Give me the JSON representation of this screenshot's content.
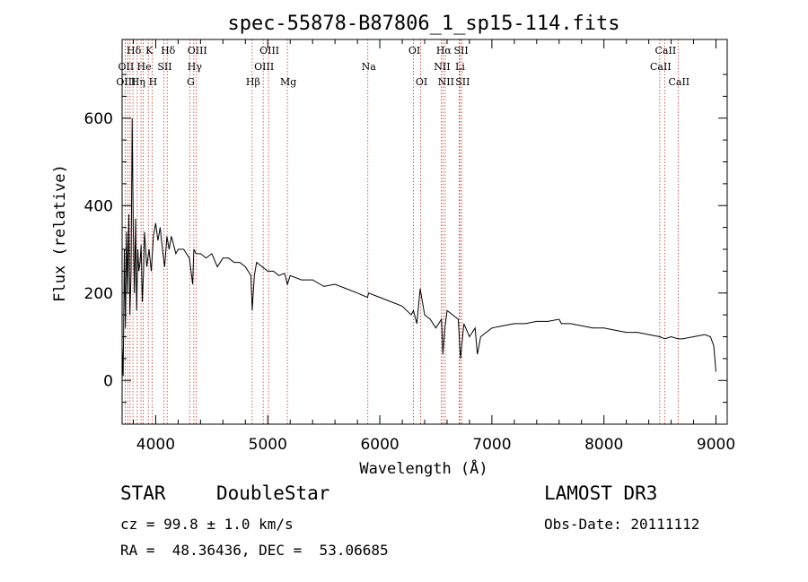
{
  "chart_data": {
    "type": "line",
    "title": "spec-55878-B87806_1_sp15-114.fits",
    "xlabel": "Wavelength (Å)",
    "ylabel": "Flux (relative)",
    "xlim": [
      3700,
      9100
    ],
    "ylim": [
      -100,
      780
    ],
    "x_ticks": [
      4000,
      5000,
      6000,
      7000,
      8000,
      9000
    ],
    "x_tick_labels": [
      "4000",
      "5000",
      "6000",
      "7000",
      "8000",
      "9000"
    ],
    "y_ticks": [
      0,
      200,
      400,
      600
    ],
    "y_tick_labels": [
      "0",
      "200",
      "400",
      "600"
    ],
    "series": [
      {
        "name": "flux",
        "x": [
          3700,
          3710,
          3720,
          3730,
          3740,
          3750,
          3760,
          3770,
          3780,
          3790,
          3800,
          3810,
          3820,
          3830,
          3840,
          3850,
          3860,
          3870,
          3880,
          3890,
          3900,
          3920,
          3940,
          3960,
          3980,
          4000,
          4020,
          4040,
          4060,
          4080,
          4100,
          4120,
          4140,
          4160,
          4180,
          4200,
          4250,
          4300,
          4330,
          4340,
          4360,
          4400,
          4450,
          4500,
          4550,
          4600,
          4650,
          4700,
          4750,
          4800,
          4850,
          4861,
          4880,
          4900,
          4950,
          5000,
          5050,
          5100,
          5150,
          5175,
          5200,
          5300,
          5400,
          5500,
          5600,
          5700,
          5800,
          5890,
          5900,
          6000,
          6100,
          6200,
          6280,
          6300,
          6330,
          6360,
          6400,
          6450,
          6500,
          6550,
          6563,
          6580,
          6600,
          6650,
          6700,
          6720,
          6750,
          6800,
          6850,
          6870,
          6900,
          6950,
          7000,
          7100,
          7200,
          7300,
          7400,
          7500,
          7600,
          7620,
          7700,
          7800,
          7900,
          8000,
          8100,
          8200,
          8300,
          8400,
          8500,
          8542,
          8600,
          8662,
          8700,
          8800,
          8900,
          8950,
          8980,
          9000
        ],
        "values": [
          80,
          10,
          300,
          120,
          340,
          200,
          380,
          150,
          250,
          600,
          340,
          200,
          370,
          160,
          300,
          250,
          270,
          310,
          180,
          240,
          340,
          260,
          300,
          250,
          330,
          360,
          320,
          350,
          300,
          260,
          330,
          300,
          330,
          310,
          290,
          300,
          300,
          280,
          220,
          300,
          290,
          290,
          280,
          290,
          260,
          280,
          280,
          270,
          270,
          260,
          240,
          160,
          240,
          270,
          260,
          250,
          250,
          240,
          245,
          220,
          240,
          230,
          230,
          215,
          220,
          210,
          200,
          190,
          200,
          190,
          180,
          170,
          150,
          160,
          130,
          210,
          150,
          140,
          120,
          140,
          60,
          120,
          160,
          150,
          140,
          50,
          130,
          100,
          120,
          60,
          100,
          110,
          120,
          125,
          130,
          130,
          135,
          135,
          140,
          130,
          130,
          125,
          120,
          120,
          115,
          110,
          110,
          105,
          100,
          95,
          100,
          95,
          95,
          100,
          105,
          100,
          80,
          20
        ]
      }
    ],
    "line_markers": [
      {
        "label": "Hδ",
        "wavelength": 3797,
        "row": 1
      },
      {
        "label": "K",
        "wavelength": 3934,
        "row": 1
      },
      {
        "label": "Hδ",
        "wavelength": 4102,
        "row": 1
      },
      {
        "label": "OIII",
        "wavelength": 4363,
        "row": 1
      },
      {
        "label": "OIII",
        "wavelength": 5007,
        "row": 1
      },
      {
        "label": "OI",
        "wavelength": 6300,
        "row": 1
      },
      {
        "label": "Hα",
        "wavelength": 6563,
        "row": 1
      },
      {
        "label": "SII",
        "wavelength": 6717,
        "row": 1
      },
      {
        "label": "CaII",
        "wavelength": 8542,
        "row": 1
      },
      {
        "label": "OII",
        "wavelength": 3727,
        "row": 2
      },
      {
        "label": "He",
        "wavelength": 3889,
        "row": 2
      },
      {
        "label": "SII",
        "wavelength": 4072,
        "row": 2
      },
      {
        "label": "Hγ",
        "wavelength": 4340,
        "row": 2
      },
      {
        "label": "OIII",
        "wavelength": 4959,
        "row": 2
      },
      {
        "label": "Na",
        "wavelength": 5893,
        "row": 2
      },
      {
        "label": "NII",
        "wavelength": 6548,
        "row": 2
      },
      {
        "label": "Li",
        "wavelength": 6708,
        "row": 2
      },
      {
        "label": "CaII",
        "wavelength": 8498,
        "row": 2
      },
      {
        "label": "OIII",
        "wavelength": 3727,
        "row": 3
      },
      {
        "label": "Hη",
        "wavelength": 3835,
        "row": 3
      },
      {
        "label": "H",
        "wavelength": 3968,
        "row": 3
      },
      {
        "label": "G",
        "wavelength": 4304,
        "row": 3
      },
      {
        "label": "Hβ",
        "wavelength": 4861,
        "row": 3
      },
      {
        "label": "Mg",
        "wavelength": 5175,
        "row": 3
      },
      {
        "label": "OI",
        "wavelength": 6364,
        "row": 3
      },
      {
        "label": "NII",
        "wavelength": 6583,
        "row": 3
      },
      {
        "label": "SII",
        "wavelength": 6731,
        "row": 3
      },
      {
        "label": "CaII",
        "wavelength": 8662,
        "row": 3
      }
    ],
    "marker_lines": [
      3727,
      3750,
      3771,
      3797,
      3835,
      3869,
      3889,
      3934,
      3968,
      4072,
      4102,
      4304,
      4340,
      4363,
      4861,
      4959,
      5007,
      5175,
      5893,
      6300,
      6364,
      6548,
      6563,
      6583,
      6708,
      6717,
      6731,
      8498,
      8542,
      8662
    ],
    "colors": {
      "data": "#000000",
      "markers": "#c0392b"
    }
  },
  "info": {
    "class": "STAR",
    "subclass": "DoubleStar",
    "survey": "LAMOST DR3",
    "cz": "cz = 99.8 ± 1.0 km/s",
    "obsdate": "Obs-Date: 20111112",
    "radec": "RA =  48.36436, DEC =  53.06685"
  }
}
